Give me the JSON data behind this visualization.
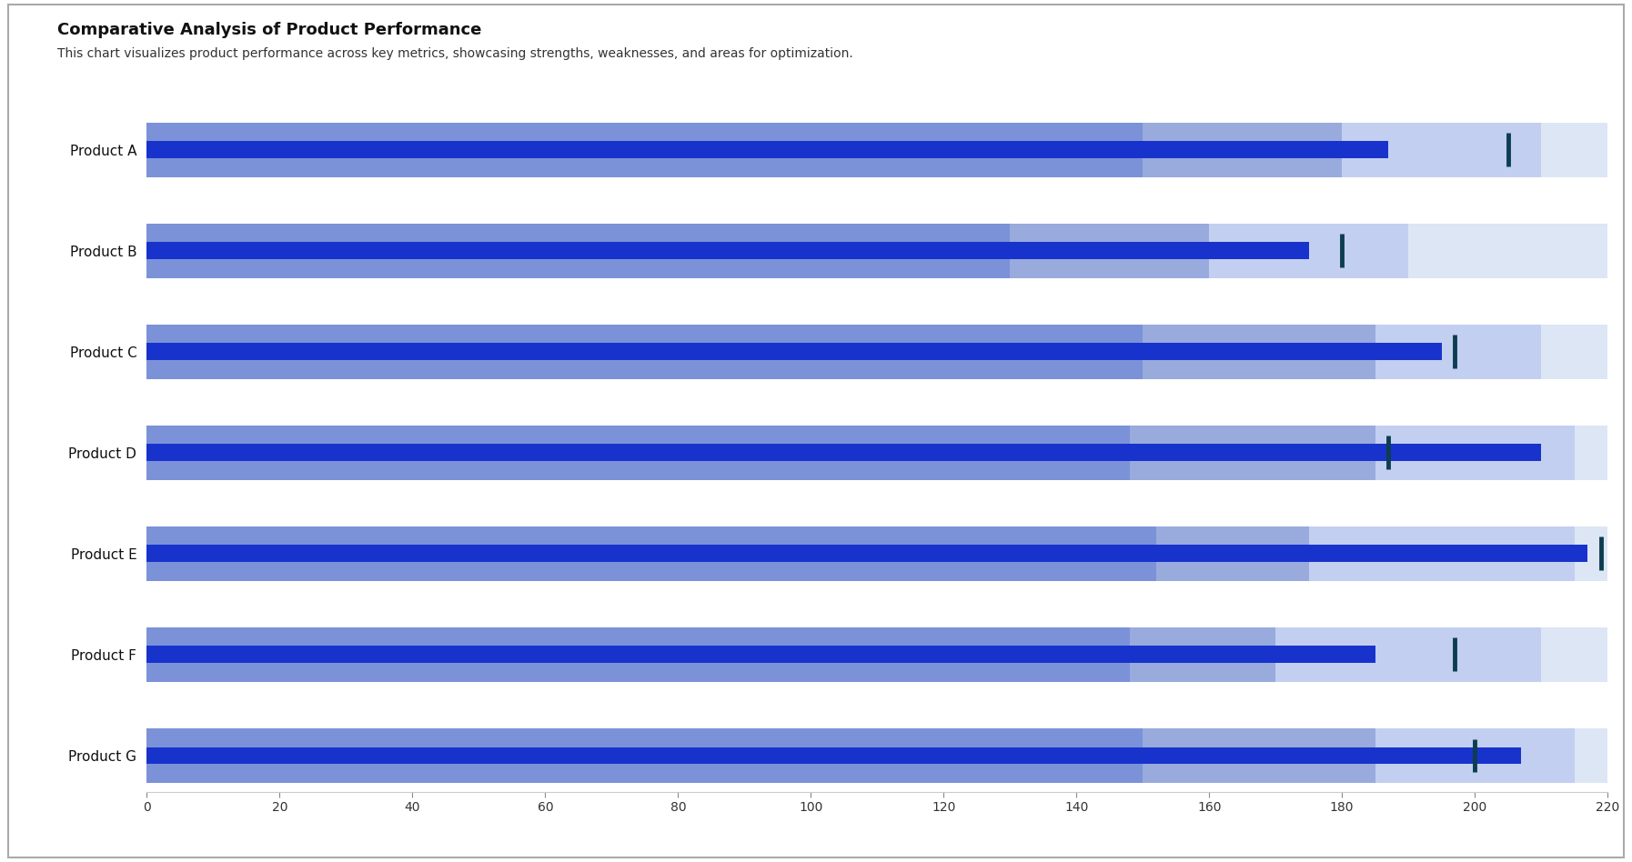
{
  "title": "Comparative Analysis of Product Performance",
  "subtitle": "This chart visualizes product performance across key metrics, showcasing strengths, weaknesses, and areas for optimization.",
  "products": [
    "Product A",
    "Product B",
    "Product C",
    "Product D",
    "Product E",
    "Product F",
    "Product G"
  ],
  "xlim": [
    0,
    220
  ],
  "xticks": [
    0,
    20,
    40,
    60,
    80,
    100,
    120,
    140,
    160,
    180,
    200,
    220
  ],
  "range_max": [
    220,
    220,
    220,
    220,
    220,
    220,
    220
  ],
  "range2_end": [
    210,
    190,
    210,
    215,
    215,
    210,
    215
  ],
  "range3_end": [
    180,
    160,
    185,
    185,
    175,
    170,
    185
  ],
  "range4_end": [
    150,
    130,
    150,
    148,
    152,
    148,
    150
  ],
  "featured_measure": [
    187,
    175,
    195,
    210,
    217,
    185,
    207
  ],
  "comparative_marker": [
    205,
    180,
    197,
    187,
    219,
    197,
    200
  ],
  "color_range1": "#dce6f5",
  "color_range2": "#c2cff0",
  "color_range3": "#99aadc",
  "color_range4": "#7b92d9",
  "color_measure": "#1833cc",
  "color_marker": "#0d3d4f",
  "background_color": "#ffffff",
  "title_fontsize": 13,
  "subtitle_fontsize": 10,
  "label_fontsize": 11,
  "tick_fontsize": 10
}
